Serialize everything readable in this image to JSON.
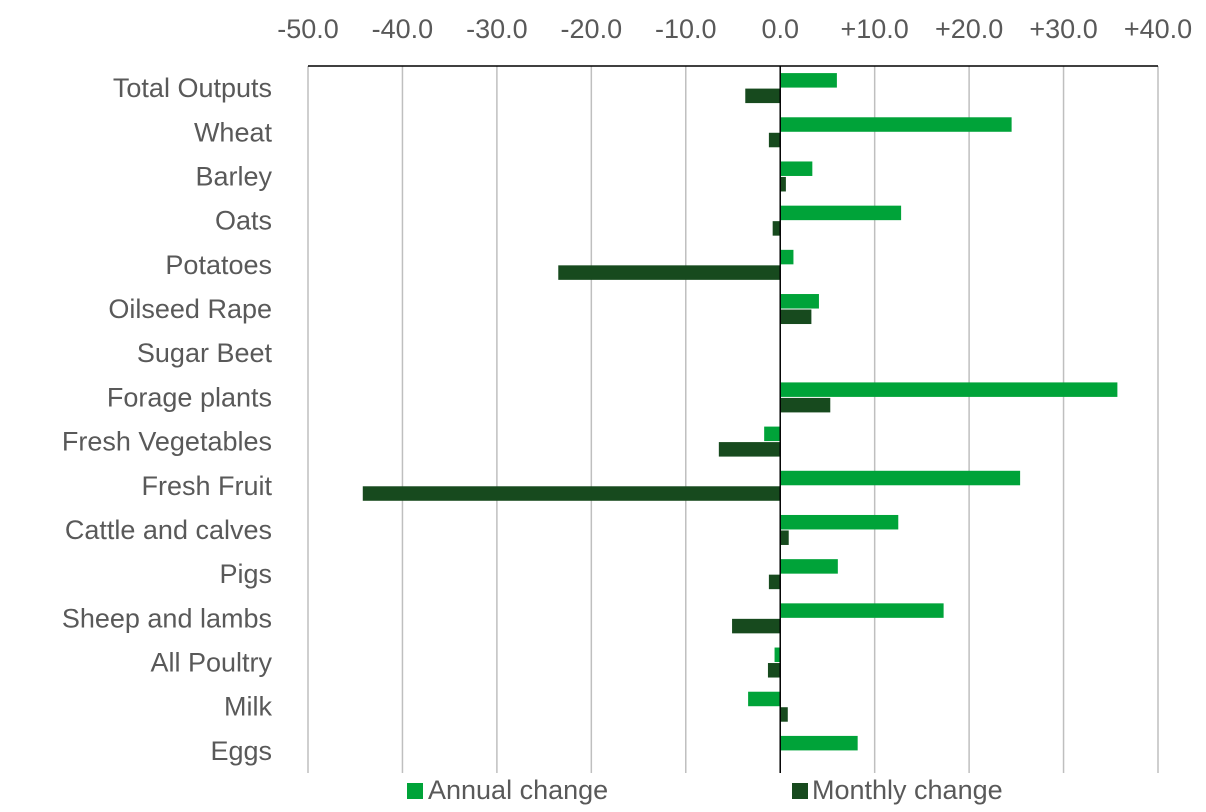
{
  "chart_data": {
    "type": "bar",
    "orientation": "horizontal",
    "title": "",
    "xlabel": "",
    "ylabel": "",
    "xlim": [
      -50,
      40
    ],
    "x_ticks": [
      -50,
      -40,
      -30,
      -20,
      -10,
      0,
      10,
      20,
      30,
      40
    ],
    "x_tick_labels": [
      "-50.0",
      "-40.0",
      "-30.0",
      "-20.0",
      "-10.0",
      "0.0",
      "+10.0",
      "+20.0",
      "+30.0",
      "+40.0"
    ],
    "x_axis_position": "top",
    "grid": "vertical",
    "legend_position": "bottom",
    "categories": [
      "Total Outputs",
      "Wheat",
      "Barley",
      "Oats",
      "Potatoes",
      "Oilseed Rape",
      "Sugar Beet",
      "Forage plants",
      "Fresh Vegetables",
      "Fresh Fruit",
      "Cattle and calves",
      "Pigs",
      "Sheep and lambs",
      "All Poultry",
      "Milk",
      "Eggs"
    ],
    "series": [
      {
        "name": "Annual change",
        "color": "#00a339",
        "values": [
          6.0,
          24.5,
          3.4,
          12.8,
          1.4,
          4.1,
          0.0,
          35.7,
          -1.7,
          25.4,
          12.5,
          6.1,
          17.3,
          -0.6,
          -3.4,
          8.2
        ]
      },
      {
        "name": "Monthly change",
        "color": "#174a1e",
        "values": [
          -3.7,
          -1.2,
          0.6,
          -0.8,
          -23.5,
          3.3,
          0.0,
          5.3,
          -6.5,
          -44.2,
          0.9,
          -1.2,
          -5.1,
          -1.3,
          0.8,
          0.0
        ]
      }
    ]
  }
}
